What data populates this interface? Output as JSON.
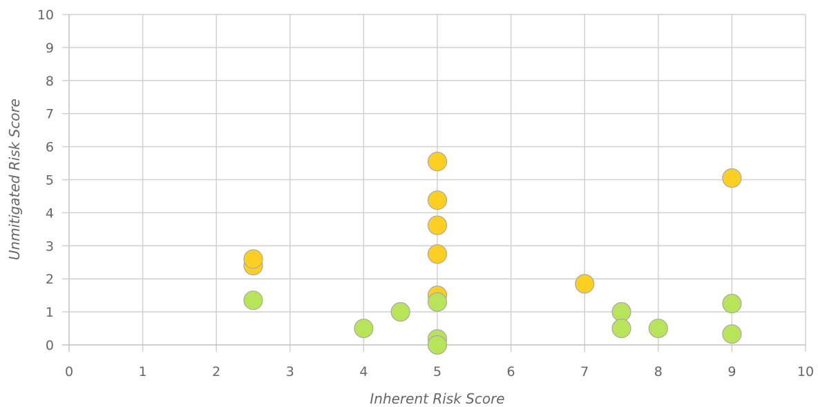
{
  "chart_data": {
    "type": "scatter",
    "xlabel": "Inherent Risk Score",
    "ylabel": "Unmitigated Risk Score",
    "xlim": [
      0,
      10
    ],
    "ylim": [
      0,
      10
    ],
    "x_ticks": [
      "0",
      "1",
      "2",
      "3",
      "4",
      "5",
      "6",
      "7",
      "8",
      "9",
      "10"
    ],
    "y_ticks": [
      "0",
      "1",
      "2",
      "3",
      "4",
      "5",
      "6",
      "7",
      "8",
      "9",
      "10"
    ],
    "grid": true,
    "colors": {
      "yellow": "#fccf22",
      "green": "#b8e45a",
      "grid": "#d0d0d0",
      "text": "#666666"
    },
    "series": [
      {
        "color_key": "yellow",
        "points": [
          {
            "x": 2.5,
            "y": 2.4
          },
          {
            "x": 2.5,
            "y": 2.6
          },
          {
            "x": 5,
            "y": 5.55
          },
          {
            "x": 5,
            "y": 4.38
          },
          {
            "x": 5,
            "y": 3.62
          },
          {
            "x": 5,
            "y": 2.75
          },
          {
            "x": 5,
            "y": 1.5
          },
          {
            "x": 7,
            "y": 1.85
          },
          {
            "x": 9,
            "y": 5.05
          }
        ]
      },
      {
        "color_key": "green",
        "points": [
          {
            "x": 2.5,
            "y": 1.35
          },
          {
            "x": 4,
            "y": 0.5
          },
          {
            "x": 4.5,
            "y": 1.0
          },
          {
            "x": 5,
            "y": 1.3
          },
          {
            "x": 5,
            "y": 0.18
          },
          {
            "x": 5,
            "y": 0.0
          },
          {
            "x": 7.5,
            "y": 1.0
          },
          {
            "x": 7.5,
            "y": 0.5
          },
          {
            "x": 8,
            "y": 0.5
          },
          {
            "x": 9,
            "y": 1.25
          },
          {
            "x": 9,
            "y": 0.33
          }
        ]
      }
    ]
  }
}
